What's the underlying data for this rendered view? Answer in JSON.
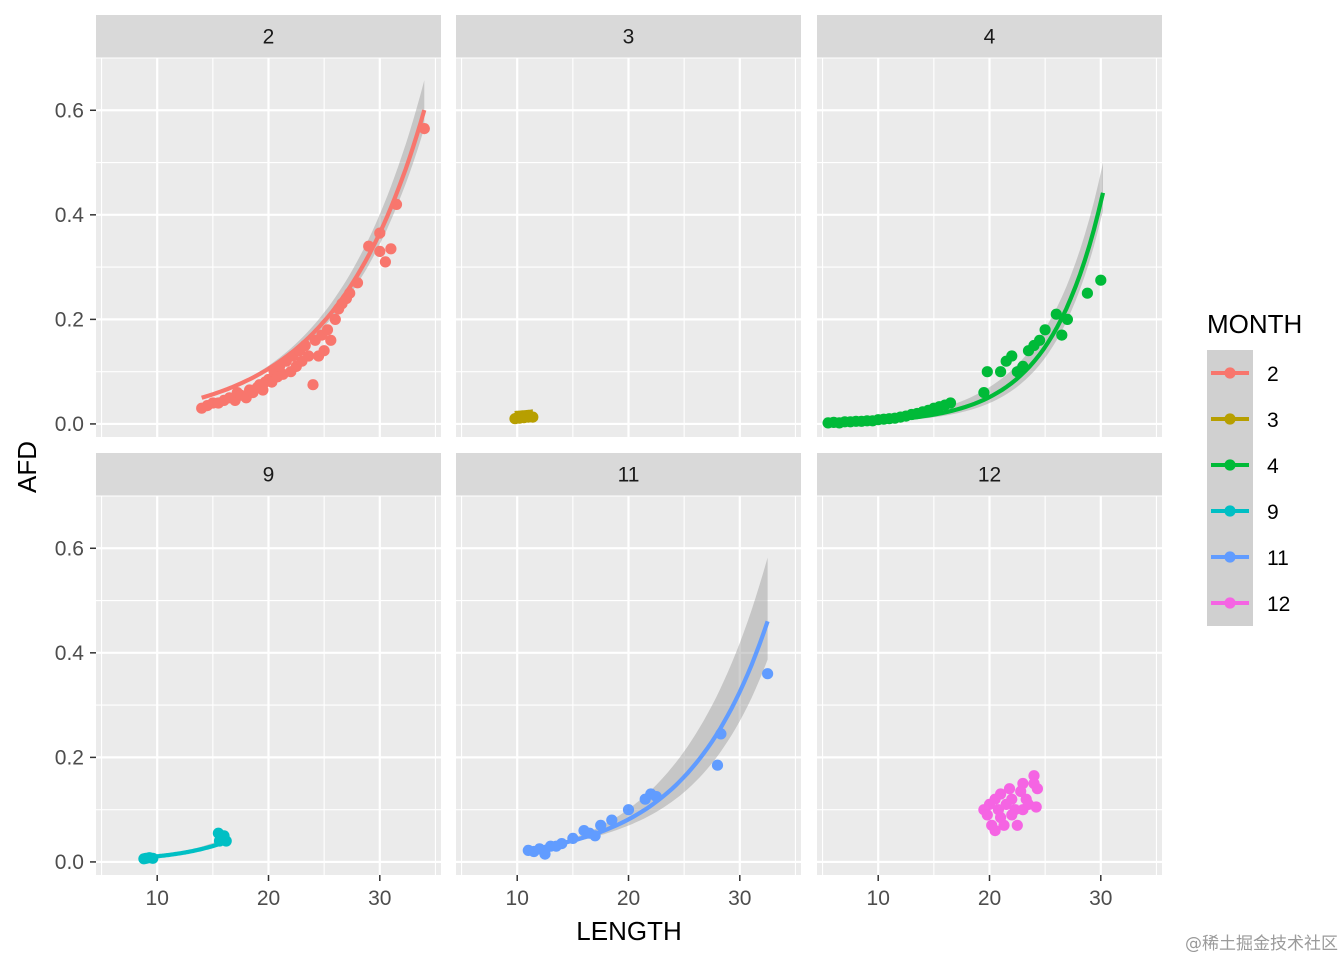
{
  "chart_data": {
    "type": "scatter",
    "facet_by": "MONTH",
    "xlabel": "LENGTH",
    "ylabel": "AFD",
    "xlim": [
      4.5,
      35.5
    ],
    "ylim": [
      -0.025,
      0.7
    ],
    "x_ticks": [
      10,
      20,
      30
    ],
    "x_tick_labels": [
      "10",
      "20",
      "30"
    ],
    "y_ticks": [
      0.0,
      0.2,
      0.4,
      0.6
    ],
    "y_tick_labels": [
      "0.0",
      "0.2",
      "0.4",
      "0.6"
    ],
    "grid": true,
    "smoother": "exponential fit with confidence band",
    "legend": {
      "title": "MONTH",
      "position": "right",
      "entries": [
        {
          "label": "2",
          "color": "#F8766D"
        },
        {
          "label": "3",
          "color": "#B79F00"
        },
        {
          "label": "4",
          "color": "#00BA38"
        },
        {
          "label": "9",
          "color": "#00BFC4"
        },
        {
          "label": "11",
          "color": "#619CFF"
        },
        {
          "label": "12",
          "color": "#F564E3"
        }
      ]
    },
    "panels": [
      {
        "label": "2",
        "color": "#F8766D",
        "fit": {
          "x_range": [
            14,
            34
          ],
          "a": 0.0088,
          "b": 0.1242,
          "band": 0.055
        },
        "points": [
          [
            14,
            0.03
          ],
          [
            14.5,
            0.035
          ],
          [
            15,
            0.04
          ],
          [
            15.5,
            0.04
          ],
          [
            16,
            0.045
          ],
          [
            16.5,
            0.05
          ],
          [
            17,
            0.045
          ],
          [
            17.2,
            0.06
          ],
          [
            17.5,
            0.055
          ],
          [
            18,
            0.05
          ],
          [
            18.3,
            0.065
          ],
          [
            18.6,
            0.06
          ],
          [
            19,
            0.07
          ],
          [
            19.2,
            0.075
          ],
          [
            19.5,
            0.065
          ],
          [
            19.7,
            0.08
          ],
          [
            20,
            0.085
          ],
          [
            20.3,
            0.08
          ],
          [
            20.5,
            0.1
          ],
          [
            20.8,
            0.09
          ],
          [
            21,
            0.11
          ],
          [
            21.3,
            0.095
          ],
          [
            21.6,
            0.12
          ],
          [
            22,
            0.1
          ],
          [
            22.2,
            0.13
          ],
          [
            22.5,
            0.11
          ],
          [
            22.8,
            0.14
          ],
          [
            23,
            0.12
          ],
          [
            23.3,
            0.15
          ],
          [
            23.6,
            0.13
          ],
          [
            24,
            0.075
          ],
          [
            24.2,
            0.16
          ],
          [
            24.5,
            0.13
          ],
          [
            24.8,
            0.17
          ],
          [
            25,
            0.14
          ],
          [
            25.3,
            0.18
          ],
          [
            25.6,
            0.16
          ],
          [
            26,
            0.2
          ],
          [
            26.3,
            0.22
          ],
          [
            26.6,
            0.23
          ],
          [
            27,
            0.24
          ],
          [
            27.3,
            0.25
          ],
          [
            28,
            0.27
          ],
          [
            29,
            0.34
          ],
          [
            30,
            0.365
          ],
          [
            30,
            0.33
          ],
          [
            30.5,
            0.31
          ],
          [
            31,
            0.335
          ],
          [
            31.5,
            0.42
          ],
          [
            34,
            0.565
          ]
        ]
      },
      {
        "label": "3",
        "color": "#B79F00",
        "fit": {
          "x_range": [
            9.8,
            11.4
          ],
          "a": 0.0095,
          "b": 0.08,
          "band": 0.003
        },
        "points": [
          [
            9.8,
            0.01
          ],
          [
            10,
            0.012
          ],
          [
            10.2,
            0.011
          ],
          [
            10.4,
            0.013
          ],
          [
            10.6,
            0.012
          ],
          [
            10.8,
            0.014
          ],
          [
            11,
            0.013
          ],
          [
            11.2,
            0.014
          ],
          [
            11.4,
            0.013
          ]
        ]
      },
      {
        "label": "4",
        "color": "#00BA38",
        "fit": {
          "x_range": [
            5.5,
            30.2
          ],
          "a": 0.000753,
          "b": 0.2111,
          "band": 0.055
        },
        "points": [
          [
            5.5,
            0.002
          ],
          [
            6,
            0.003
          ],
          [
            6.5,
            0.002
          ],
          [
            7,
            0.004
          ],
          [
            7.5,
            0.004
          ],
          [
            8,
            0.005
          ],
          [
            8.5,
            0.005
          ],
          [
            9,
            0.006
          ],
          [
            9.5,
            0.006
          ],
          [
            10,
            0.008
          ],
          [
            10.5,
            0.009
          ],
          [
            11,
            0.01
          ],
          [
            11.5,
            0.011
          ],
          [
            12,
            0.013
          ],
          [
            12.5,
            0.015
          ],
          [
            13,
            0.018
          ],
          [
            13.5,
            0.02
          ],
          [
            14,
            0.023
          ],
          [
            14.5,
            0.026
          ],
          [
            15,
            0.03
          ],
          [
            15.5,
            0.033
          ],
          [
            16,
            0.036
          ],
          [
            16.5,
            0.04
          ],
          [
            19.5,
            0.06
          ],
          [
            19.8,
            0.1
          ],
          [
            21,
            0.1
          ],
          [
            21.5,
            0.12
          ],
          [
            22,
            0.13
          ],
          [
            22.5,
            0.1
          ],
          [
            23,
            0.11
          ],
          [
            23.5,
            0.14
          ],
          [
            24,
            0.15
          ],
          [
            24.5,
            0.16
          ],
          [
            25,
            0.18
          ],
          [
            26,
            0.21
          ],
          [
            26.5,
            0.17
          ],
          [
            27,
            0.2
          ],
          [
            28.8,
            0.25
          ],
          [
            30,
            0.275
          ]
        ]
      },
      {
        "label": "9",
        "color": "#00BFC4",
        "fit": {
          "x_range": [
            8.8,
            16.2
          ],
          "a": 0.00137,
          "b": 0.2066,
          "band": 0.006
        },
        "points": [
          [
            8.8,
            0.006
          ],
          [
            9,
            0.007
          ],
          [
            9.3,
            0.008
          ],
          [
            9.6,
            0.007
          ],
          [
            15.5,
            0.055
          ],
          [
            15.8,
            0.045
          ],
          [
            16,
            0.05
          ],
          [
            15.6,
            0.04
          ],
          [
            16.2,
            0.04
          ]
        ]
      },
      {
        "label": "11",
        "color": "#619CFF",
        "fit": {
          "x_range": [
            11,
            32.5
          ],
          "a": 0.00509,
          "b": 0.1386,
          "band": 0.12
        },
        "points": [
          [
            11,
            0.022
          ],
          [
            11.5,
            0.02
          ],
          [
            12,
            0.025
          ],
          [
            12.5,
            0.015
          ],
          [
            13,
            0.03
          ],
          [
            13.5,
            0.03
          ],
          [
            14,
            0.035
          ],
          [
            15,
            0.045
          ],
          [
            16,
            0.06
          ],
          [
            16.5,
            0.055
          ],
          [
            17,
            0.05
          ],
          [
            17.5,
            0.07
          ],
          [
            18.5,
            0.08
          ],
          [
            20,
            0.1
          ],
          [
            21.5,
            0.12
          ],
          [
            22,
            0.13
          ],
          [
            22.5,
            0.125
          ],
          [
            28,
            0.185
          ],
          [
            28.3,
            0.245
          ],
          [
            32.5,
            0.36
          ]
        ]
      },
      {
        "label": "12",
        "color": "#F564E3",
        "fit": null,
        "points": [
          [
            19.5,
            0.1
          ],
          [
            19.8,
            0.09
          ],
          [
            20,
            0.11
          ],
          [
            20.2,
            0.07
          ],
          [
            20.5,
            0.06
          ],
          [
            20.5,
            0.12
          ],
          [
            20.8,
            0.1
          ],
          [
            21,
            0.085
          ],
          [
            21,
            0.13
          ],
          [
            21.3,
            0.07
          ],
          [
            21.5,
            0.11
          ],
          [
            21.8,
            0.14
          ],
          [
            22,
            0.09
          ],
          [
            22,
            0.12
          ],
          [
            22.3,
            0.1
          ],
          [
            22.5,
            0.07
          ],
          [
            22.8,
            0.135
          ],
          [
            23,
            0.1
          ],
          [
            23,
            0.15
          ],
          [
            23.3,
            0.12
          ],
          [
            23.5,
            0.11
          ],
          [
            24,
            0.165
          ],
          [
            24,
            0.15
          ],
          [
            24.2,
            0.105
          ],
          [
            24.3,
            0.14
          ]
        ]
      }
    ]
  },
  "watermark": "@稀土掘金技术社区"
}
